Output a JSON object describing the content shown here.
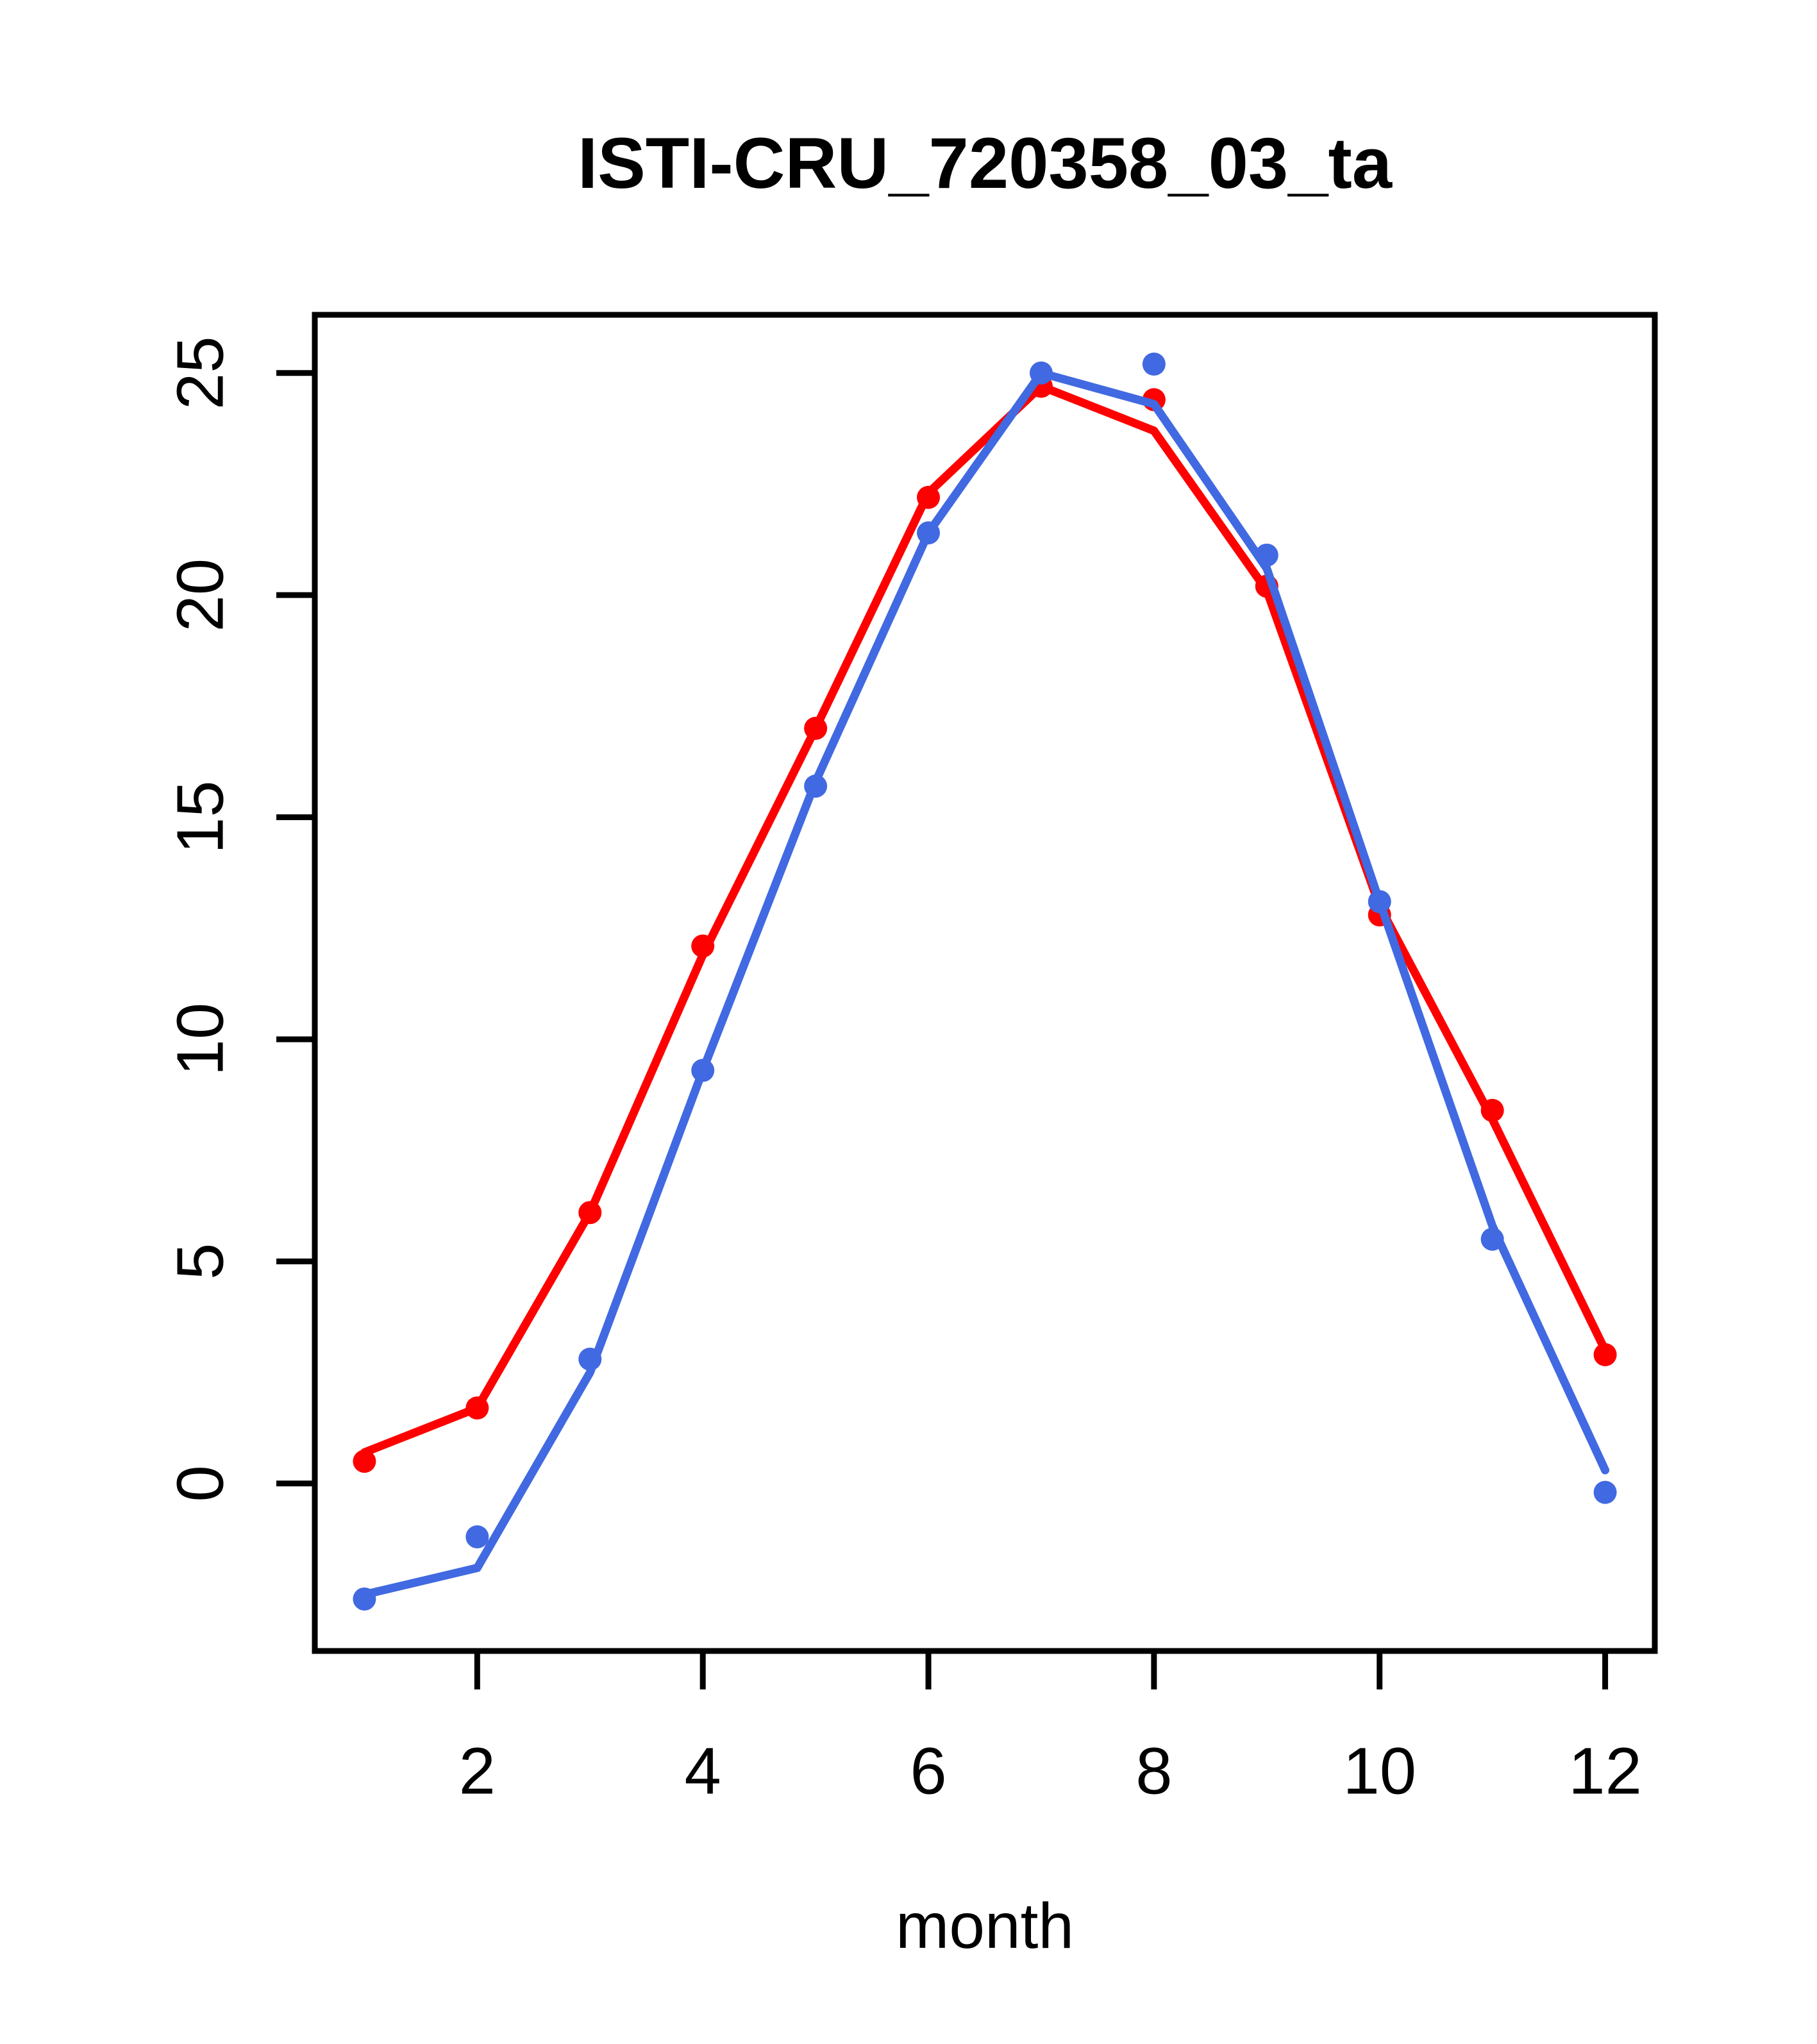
{
  "page": {
    "background": "#ffffff"
  },
  "chart_data": {
    "type": "line",
    "title": "ISTI-CRU_720358_03_ta",
    "xlabel": "month",
    "ylabel": "",
    "x": [
      1,
      2,
      3,
      4,
      5,
      6,
      7,
      8,
      9,
      10,
      11,
      12
    ],
    "x_ticks": [
      2,
      4,
      6,
      8,
      10,
      12
    ],
    "y_ticks": [
      0,
      5,
      10,
      15,
      20,
      25
    ],
    "xlim": [
      0.56,
      12.44
    ],
    "ylim": [
      -3.77,
      26.31
    ],
    "grid": false,
    "legend": "none",
    "colors": {
      "red_series": "#FF0000",
      "blue_series": "#4169E1",
      "axis": "#000000"
    },
    "series": [
      {
        "name": "red-curve",
        "style": "line",
        "color": "#FF0000",
        "values": [
          0.7,
          1.7,
          6.1,
          11.9,
          17.0,
          22.3,
          24.7,
          23.7,
          20.1,
          13.0,
          8.2,
          3.0
        ]
      },
      {
        "name": "red-markers",
        "style": "points",
        "color": "#FF0000",
        "values": [
          0.5,
          1.7,
          6.1,
          12.1,
          17.0,
          22.2,
          24.7,
          24.4,
          20.2,
          12.8,
          8.4,
          2.9
        ]
      },
      {
        "name": "blue-curve",
        "style": "line",
        "color": "#4169E1",
        "values": [
          -2.5,
          -1.9,
          2.5,
          9.3,
          15.8,
          21.4,
          25.0,
          24.3,
          20.6,
          13.1,
          5.8,
          0.3
        ]
      },
      {
        "name": "blue-markers",
        "style": "points",
        "color": "#4169E1",
        "values": [
          -2.6,
          -1.2,
          2.8,
          9.3,
          15.7,
          21.4,
          25.0,
          25.2,
          20.9,
          13.1,
          5.5,
          -0.2
        ]
      }
    ]
  }
}
